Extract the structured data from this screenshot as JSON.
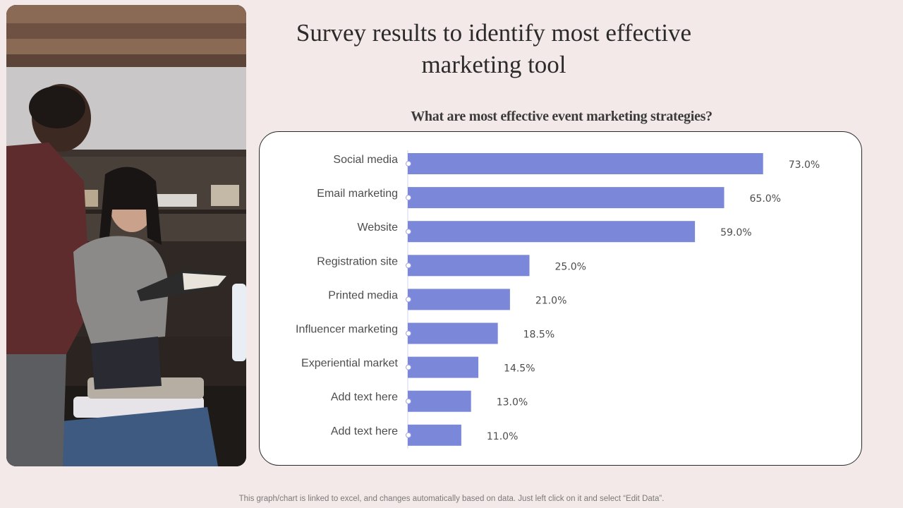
{
  "title": "Survey results to identify most effective marketing tool",
  "footnote": "This graph/chart is linked to excel, and changes automatically based on data. Just left click on it and select “Edit Data”.",
  "colors": {
    "bar": "#7b88d9",
    "background": "#f3e9e8",
    "panel": "#ffffff"
  },
  "chart_data": {
    "type": "bar",
    "orientation": "horizontal",
    "title": "What are most effective event marketing strategies?",
    "categories": [
      "Social media",
      "Email marketing",
      "Website",
      "Registration site",
      "Printed media",
      "Influencer marketing",
      "Experiential market",
      "Add text here",
      "Add text here"
    ],
    "values": [
      73.0,
      65.0,
      59.0,
      25.0,
      21.0,
      18.5,
      14.5,
      13.0,
      11.0
    ],
    "value_labels": [
      "73.0%",
      "65.0%",
      "59.0%",
      "25.0%",
      "21.0%",
      "18.5%",
      "14.5%",
      "13.0%",
      "11.0%"
    ],
    "xlim": [
      0,
      100
    ],
    "grid": false,
    "legend": "none"
  }
}
